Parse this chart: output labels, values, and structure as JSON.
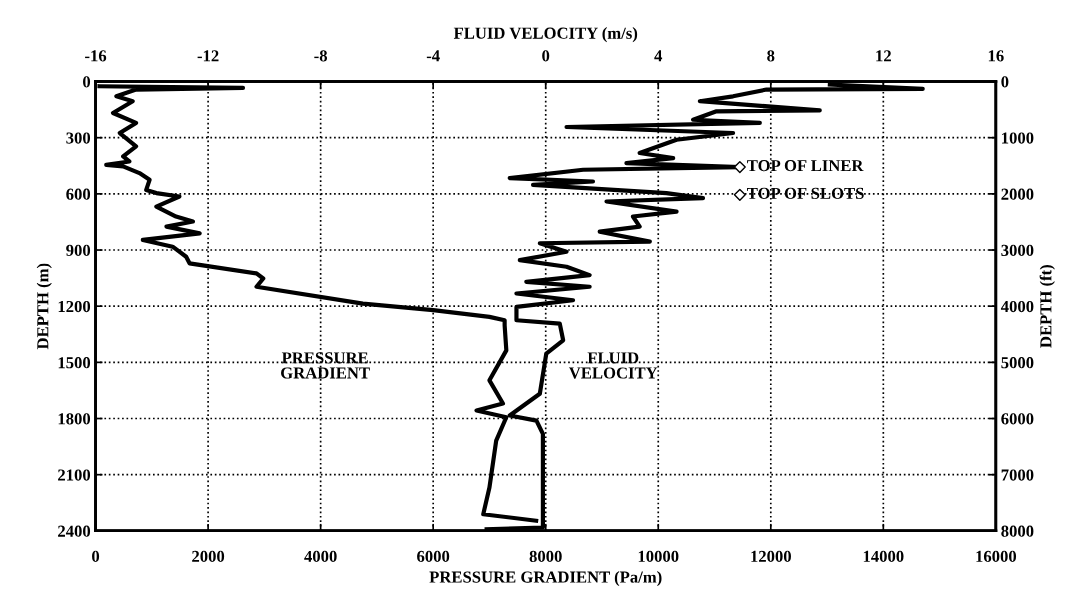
{
  "chart_data": {
    "type": "line",
    "xlabel": "PRESSURE GRADIENT (Pa/m)",
    "x2label": "FLUID VELOCITY (m/s)",
    "ylabel": "DEPTH (m)",
    "y2label": "DEPTH (ft)",
    "xlim": [
      0,
      16000
    ],
    "xticks": [
      0,
      2000,
      4000,
      6000,
      8000,
      10000,
      12000,
      14000,
      16000
    ],
    "x2lim": [
      -16,
      16
    ],
    "x2ticks": [
      -16,
      -12,
      -8,
      -4,
      0,
      4,
      8,
      12,
      16
    ],
    "ylim": [
      2400,
      0
    ],
    "yticks": [
      0,
      300,
      600,
      900,
      1200,
      1500,
      1800,
      2100,
      2400
    ],
    "y2lim": [
      8000,
      0
    ],
    "y2ticks": [
      0,
      1000,
      2000,
      3000,
      4000,
      5000,
      6000,
      7000,
      8000
    ],
    "grid": true,
    "legend": false,
    "series": [
      {
        "name": "PRESSURE\nGRADIENT",
        "color": "#000000",
        "x": [
          70,
          2620,
          720,
          370,
          660,
          310,
          720,
          430,
          720,
          490,
          600,
          190,
          490,
          780,
          960,
          900,
          1080,
          1490,
          1080,
          1430,
          1730,
          1260,
          1850,
          840,
          1370,
          1610,
          1670,
          2860,
          2980,
          2860,
          4750,
          6000,
          7000,
          7270,
          7270,
          7300,
          7000,
          7240,
          6770,
          7300,
          7120,
          7000,
          6890,
          7830
        ],
        "values": [
          25,
          34,
          43,
          79,
          105,
          168,
          221,
          275,
          346,
          400,
          427,
          445,
          453,
          489,
          525,
          579,
          596,
          614,
          668,
          721,
          748,
          775,
          811,
          846,
          882,
          936,
          971,
          1025,
          1052,
          1096,
          1186,
          1221,
          1257,
          1275,
          1302,
          1436,
          1596,
          1720,
          1757,
          1793,
          1918,
          2168,
          2311,
          2346
        ]
      },
      {
        "name": "FLUID\nVELOCITY",
        "color": "#000000",
        "axis": "x2",
        "x": [
          10.1,
          13.4,
          7.85,
          6.66,
          5.48,
          9.74,
          6.07,
          5.24,
          7.61,
          0.74,
          6.66,
          4.65,
          3.34,
          4.53,
          2.87,
          6.9,
          1.33,
          -1.28,
          1.68,
          -0.45,
          4.29,
          5.59,
          2.16,
          4.65,
          3.1,
          3.34,
          1.92,
          3.7,
          -0.21,
          0.74,
          -0.92,
          0.74,
          1.56,
          -0.69,
          1.56,
          -1.04,
          0.97,
          -1.04,
          -1.04,
          0.5,
          0.62,
          0.02,
          -0.21,
          -1.28,
          -0.33,
          -0.1,
          -0.1,
          -0.1,
          -2.1
        ],
        "values": [
          16,
          39,
          43,
          79,
          105,
          154,
          159,
          204,
          221,
          243,
          275,
          311,
          382,
          409,
          436,
          457,
          471,
          516,
          534,
          552,
          596,
          623,
          641,
          695,
          721,
          775,
          802,
          855,
          864,
          909,
          954,
          989,
          1034,
          1070,
          1096,
          1132,
          1168,
          1204,
          1275,
          1293,
          1382,
          1453,
          1668,
          1784,
          1811,
          1882,
          2346,
          2382,
          2391
        ]
      },
      {
        "type": "scatter",
        "color": "#ffffff",
        "axis": "x2",
        "marker": "diamond",
        "x": [
          6.9,
          6.9
        ],
        "values": [
          457,
          605
        ]
      }
    ],
    "annotations": [
      "TOP OF LINER",
      "TOP OF SLOTS"
    ]
  }
}
